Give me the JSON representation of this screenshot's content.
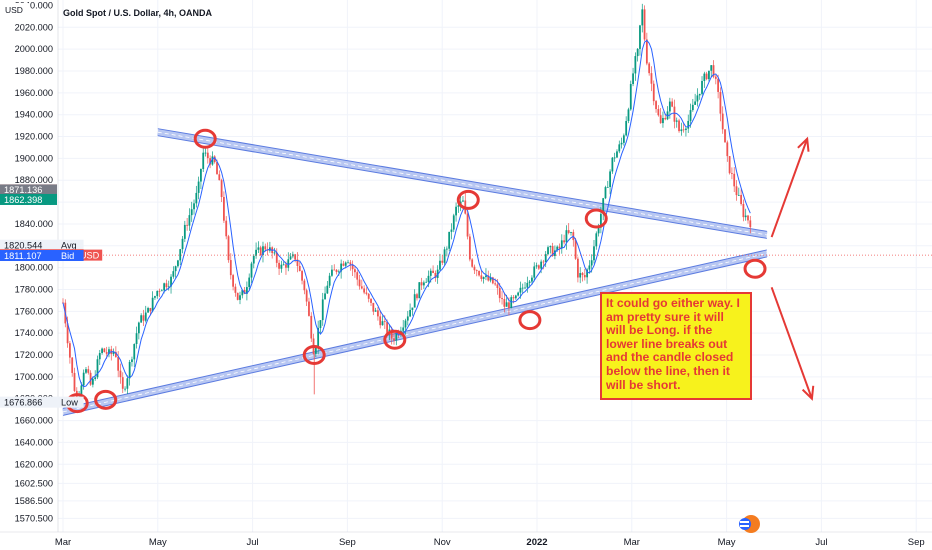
{
  "chart_data": {
    "type": "candlestick",
    "title": "Gold Spot / U.S. Dollar, 4h, OANDA",
    "currency": "USD",
    "ylim": [
      1558,
      2045
    ],
    "y_ticks": [
      "1570.500",
      "1586.500",
      "1602.500",
      "1620.000",
      "1640.000",
      "1660.000",
      "1680.000",
      "1700.000",
      "1720.000",
      "1740.000",
      "1760.000",
      "1780.000",
      "1800.000",
      "1820.000",
      "1840.000",
      "1860.000",
      "1880.000",
      "1900.000",
      "1920.000",
      "1940.000",
      "1960.000",
      "1980.000",
      "2000.000",
      "2020.000"
    ],
    "y_top_partial": "2040.000",
    "x_months": [
      {
        "m": 0,
        "label": "Mar"
      },
      {
        "m": 2,
        "label": "May"
      },
      {
        "m": 4,
        "label": "Jul"
      },
      {
        "m": 6,
        "label": "Sep"
      },
      {
        "m": 8,
        "label": "Nov"
      },
      {
        "m": 10,
        "label": "2022",
        "bold": true
      },
      {
        "m": 12,
        "label": "Mar"
      },
      {
        "m": 14,
        "label": "May"
      },
      {
        "m": 16,
        "label": "Jul"
      },
      {
        "m": 18,
        "label": "Sep"
      }
    ],
    "price_path": [
      [
        0,
        1768
      ],
      [
        0.2,
        1700
      ],
      [
        0.3,
        1676
      ],
      [
        0.45,
        1710
      ],
      [
        0.6,
        1690
      ],
      [
        0.8,
        1725
      ],
      [
        1.0,
        1720
      ],
      [
        1.1,
        1725
      ],
      [
        1.25,
        1685
      ],
      [
        1.35,
        1700
      ],
      [
        1.6,
        1750
      ],
      [
        1.8,
        1760
      ],
      [
        2.0,
        1780
      ],
      [
        2.3,
        1790
      ],
      [
        2.6,
        1840
      ],
      [
        2.85,
        1870
      ],
      [
        2.95,
        1905
      ],
      [
        3.2,
        1895
      ],
      [
        3.35,
        1865
      ],
      [
        3.5,
        1800
      ],
      [
        3.7,
        1770
      ],
      [
        3.85,
        1780
      ],
      [
        4.0,
        1810
      ],
      [
        4.3,
        1820
      ],
      [
        4.6,
        1800
      ],
      [
        4.9,
        1810
      ],
      [
        5.1,
        1780
      ],
      [
        5.3,
        1722
      ],
      [
        5.45,
        1760
      ],
      [
        5.6,
        1790
      ],
      [
        5.8,
        1800
      ],
      [
        6.0,
        1810
      ],
      [
        6.2,
        1790
      ],
      [
        6.5,
        1765
      ],
      [
        6.8,
        1745
      ],
      [
        6.95,
        1735
      ],
      [
        7.05,
        1740
      ],
      [
        7.3,
        1760
      ],
      [
        7.6,
        1790
      ],
      [
        7.9,
        1795
      ],
      [
        8.1,
        1820
      ],
      [
        8.3,
        1855
      ],
      [
        8.45,
        1860
      ],
      [
        8.6,
        1805
      ],
      [
        8.9,
        1790
      ],
      [
        9.1,
        1785
      ],
      [
        9.3,
        1765
      ],
      [
        9.55,
        1770
      ],
      [
        9.8,
        1790
      ],
      [
        10.0,
        1800
      ],
      [
        10.2,
        1815
      ],
      [
        10.45,
        1815
      ],
      [
        10.6,
        1830
      ],
      [
        10.75,
        1830
      ],
      [
        10.85,
        1795
      ],
      [
        11.0,
        1790
      ],
      [
        11.15,
        1810
      ],
      [
        11.4,
        1860
      ],
      [
        11.6,
        1900
      ],
      [
        11.8,
        1915
      ],
      [
        11.95,
        1955
      ],
      [
        12.05,
        1985
      ],
      [
        12.15,
        2000
      ],
      [
        12.2,
        2045
      ],
      [
        12.3,
        1995
      ],
      [
        12.45,
        1960
      ],
      [
        12.6,
        1930
      ],
      [
        12.8,
        1950
      ],
      [
        13.0,
        1925
      ],
      [
        13.2,
        1935
      ],
      [
        13.4,
        1960
      ],
      [
        13.55,
        1975
      ],
      [
        13.7,
        1985
      ],
      [
        13.85,
        1950
      ],
      [
        14.0,
        1900
      ],
      [
        14.2,
        1870
      ],
      [
        14.35,
        1850
      ],
      [
        14.5,
        1842
      ]
    ],
    "trendlines": [
      {
        "name": "upper",
        "from": [
          2.0,
          1924
        ],
        "to": [
          14.85,
          1830
        ]
      },
      {
        "name": "lower",
        "from": [
          0.0,
          1668
        ],
        "to": [
          14.85,
          1813
        ]
      }
    ],
    "markers": [
      [
        0.3,
        1676
      ],
      [
        0.9,
        1679
      ],
      [
        3.0,
        1918
      ],
      [
        5.3,
        1720
      ],
      [
        7.0,
        1734
      ],
      [
        8.55,
        1862
      ],
      [
        9.85,
        1752
      ],
      [
        11.25,
        1845
      ],
      [
        14.6,
        1799
      ]
    ],
    "arrows": [
      {
        "name": "up-arrow",
        "from": [
          14.95,
          1828
        ],
        "to": [
          15.7,
          1918
        ]
      },
      {
        "name": "down-arrow",
        "from": [
          14.95,
          1782
        ],
        "to": [
          15.8,
          1680
        ]
      }
    ],
    "price_labels": [
      {
        "text": "1871.137",
        "price": 1871.137,
        "color": "#ef5350"
      },
      {
        "text": "1871.136",
        "price": 1871.136,
        "color": "#787b86"
      },
      {
        "text": "1862.398",
        "price": 1862.398,
        "color": "#089981"
      },
      {
        "text": "1820.544",
        "price": 1820.544,
        "tag": "Avg",
        "color": "#eef2f8"
      },
      {
        "text": "1811.823",
        "price": 1811.823,
        "tag": "Ask",
        "color": "#ef5350"
      },
      {
        "text": "1811.465",
        "price": 1811.465,
        "tag": "XAUUSD",
        "color": "#ef5350"
      },
      {
        "text": "1811.107",
        "price": 1811.107,
        "tag": "Bid",
        "color": "#2962ff"
      },
      {
        "text": "1676.866",
        "price": 1676.866,
        "tag": "Low",
        "color": "#eef2f8"
      }
    ],
    "current_price": 1811.465,
    "colors": {
      "up": "#089981",
      "down": "#ef5350",
      "ma": "#2962ff",
      "trend": "#5b7be0",
      "marker": "#e53935"
    }
  },
  "annotation": {
    "text": "It could go either way. I am pretty sure it will will be Long. if the lower line breaks out and the candle closed below the line, then it will be short."
  }
}
